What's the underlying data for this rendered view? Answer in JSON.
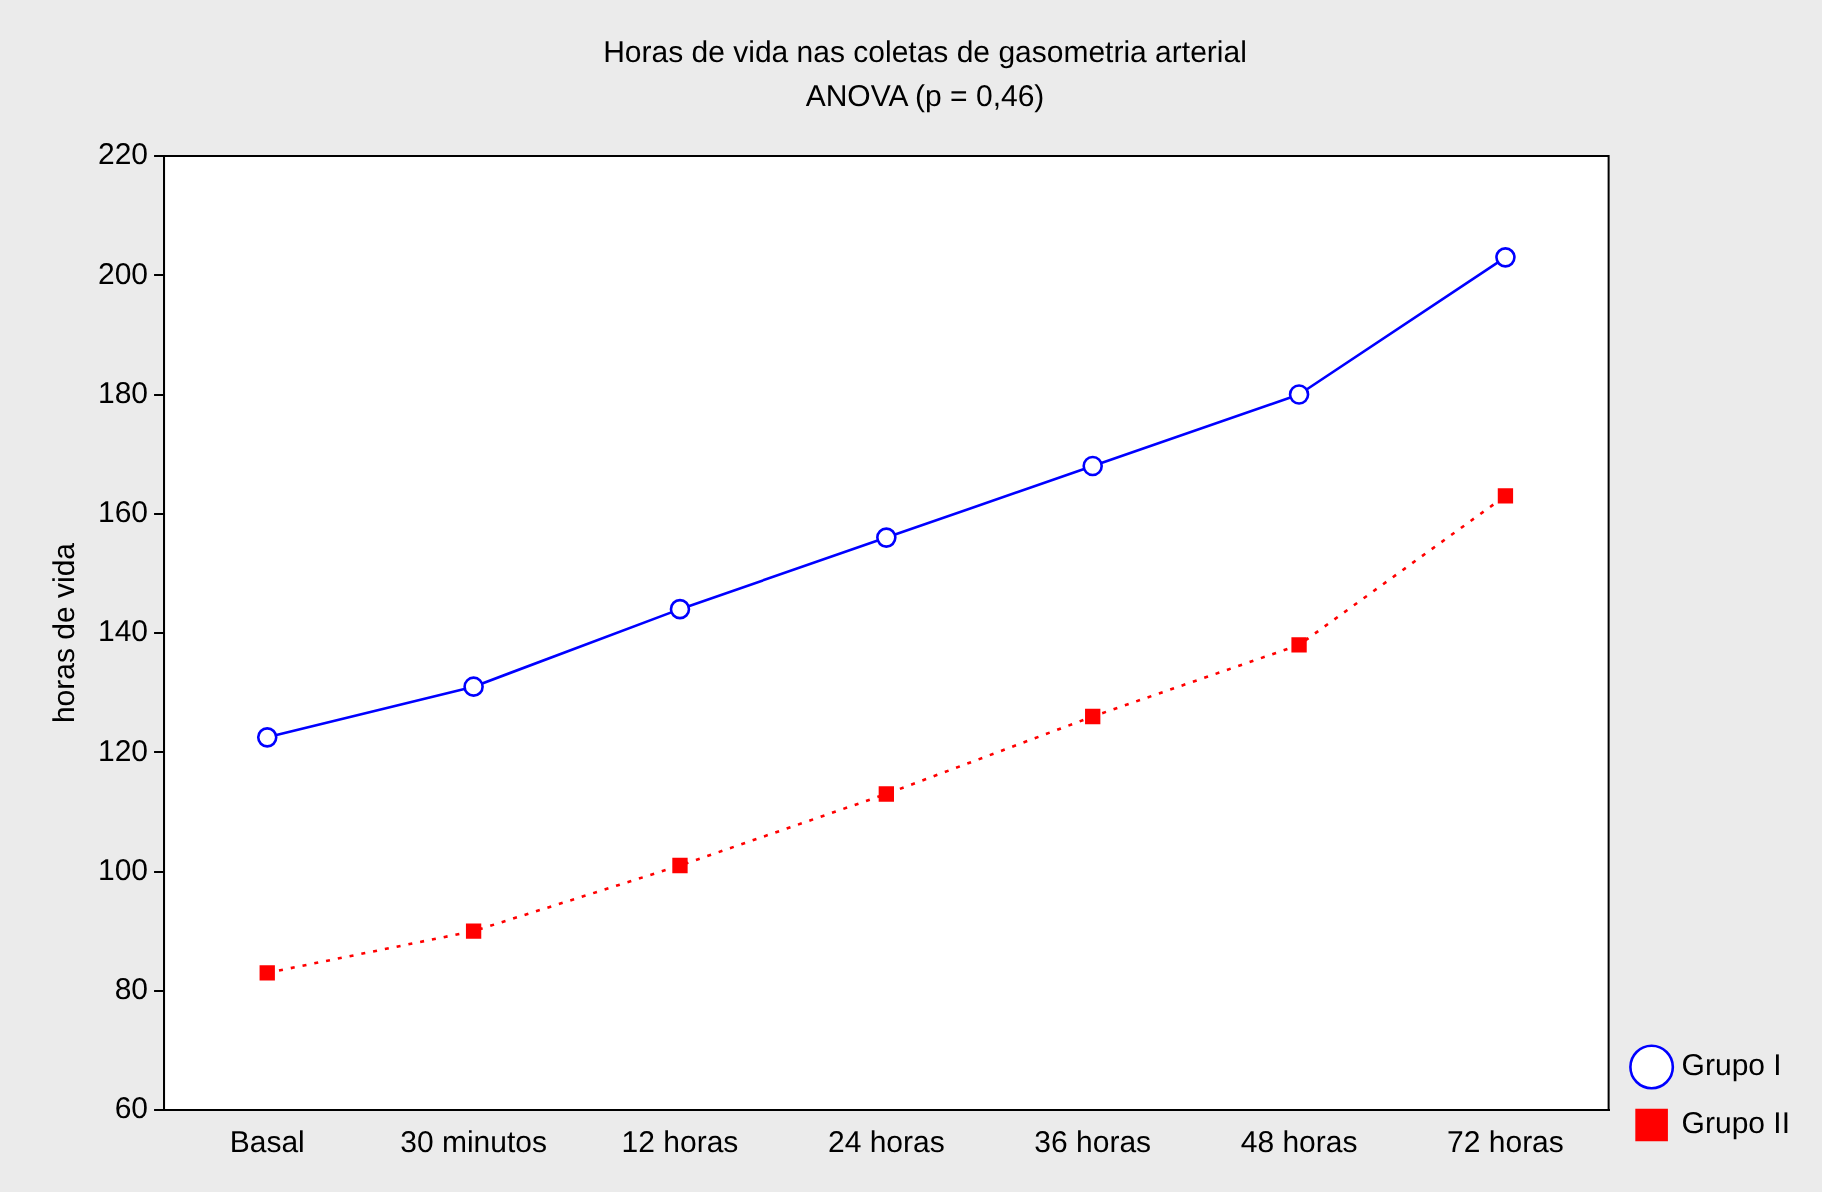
{
  "chart_data": {
    "type": "line",
    "title": "Horas de vida nas coletas de gasometria arterial",
    "subtitle": "ANOVA (p = 0,46)",
    "ylabel": "horas de vida",
    "categories": [
      "Basal",
      "30 minutos",
      "12 horas",
      "24 horas",
      "36 horas",
      "48 horas",
      "72 horas"
    ],
    "series": [
      {
        "name": "Grupo I",
        "color": "#0000ff",
        "marker": "circle",
        "line_style": "solid",
        "values": [
          122.5,
          131,
          144,
          156,
          168,
          180,
          203
        ]
      },
      {
        "name": "Grupo II",
        "color": "#ff0000",
        "marker": "square",
        "line_style": "dotted",
        "values": [
          83,
          90,
          101,
          113,
          126,
          138,
          163
        ]
      }
    ],
    "ylim": [
      60,
      220
    ],
    "yticks": [
      60,
      80,
      100,
      120,
      140,
      160,
      180,
      200,
      220
    ],
    "grid": false,
    "legend": "bottom right"
  }
}
